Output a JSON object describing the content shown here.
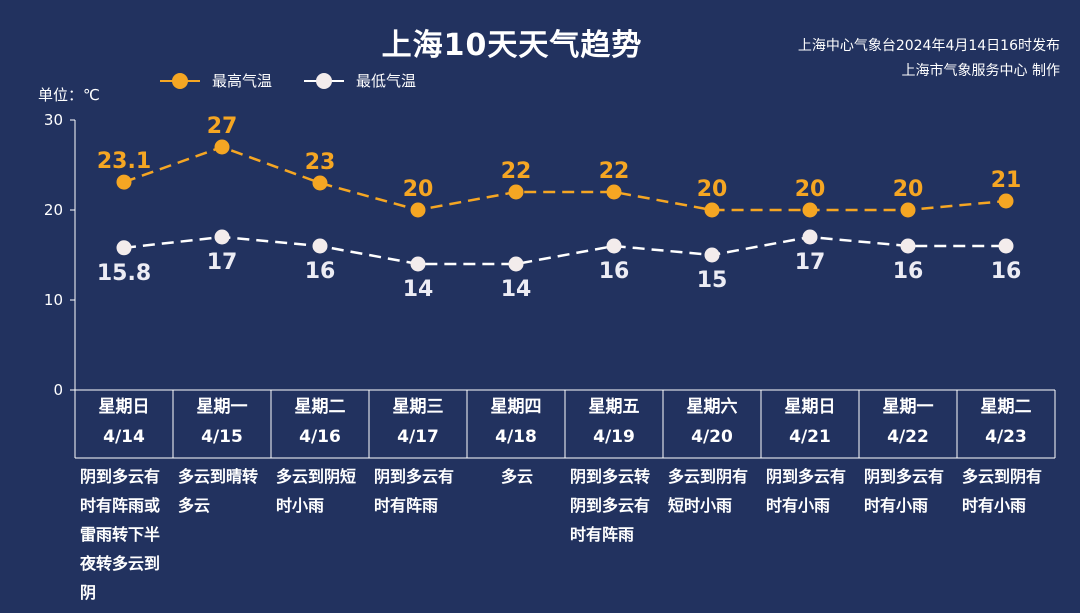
{
  "header": {
    "title": "上海10天天气趋势",
    "issuer_line1": "上海中心气象台2024年4月14日16时发布",
    "issuer_line2": "上海市气象服务中心 制作"
  },
  "unit_label": "单位：℃",
  "colors": {
    "background": "#22325f",
    "high": "#f5a623",
    "low": "#ffffff",
    "axis": "#ffffff"
  },
  "chart_data": {
    "type": "line",
    "ylabel": "单位：℃",
    "ylim": [
      0,
      30
    ],
    "yticks": [
      0,
      10,
      20,
      30
    ],
    "grid": false,
    "legend": "top-left",
    "categories": [
      "4/14",
      "4/15",
      "4/16",
      "4/17",
      "4/18",
      "4/19",
      "4/20",
      "4/21",
      "4/22",
      "4/23"
    ],
    "series": [
      {
        "name": "最高气温",
        "values": [
          23.1,
          27,
          23,
          20,
          22,
          22,
          20,
          20,
          20,
          21
        ],
        "labels": [
          "23.1",
          "27",
          "23",
          "20",
          "22",
          "22",
          "20",
          "20",
          "20",
          "21"
        ]
      },
      {
        "name": "最低气温",
        "values": [
          15.8,
          17,
          16,
          14,
          14,
          16,
          15,
          17,
          16,
          16
        ],
        "labels": [
          "15.8",
          "17",
          "16",
          "14",
          "14",
          "16",
          "15",
          "17",
          "16",
          "16"
        ]
      }
    ]
  },
  "days": [
    {
      "weekday": "星期日",
      "date": "4/14",
      "weather": "阴到多云有时有阵雨或雷雨转下半夜转多云到阴"
    },
    {
      "weekday": "星期一",
      "date": "4/15",
      "weather": "多云到晴转多云"
    },
    {
      "weekday": "星期二",
      "date": "4/16",
      "weather": "多云到阴短时小雨"
    },
    {
      "weekday": "星期三",
      "date": "4/17",
      "weather": "阴到多云有时有阵雨"
    },
    {
      "weekday": "星期四",
      "date": "4/18",
      "weather": "多云"
    },
    {
      "weekday": "星期五",
      "date": "4/19",
      "weather": "阴到多云转阴到多云有时有阵雨"
    },
    {
      "weekday": "星期六",
      "date": "4/20",
      "weather": "多云到阴有短时小雨"
    },
    {
      "weekday": "星期日",
      "date": "4/21",
      "weather": "阴到多云有时有小雨"
    },
    {
      "weekday": "星期一",
      "date": "4/22",
      "weather": "阴到多云有时有小雨"
    },
    {
      "weekday": "星期二",
      "date": "4/23",
      "weather": "多云到阴有时有小雨"
    }
  ]
}
